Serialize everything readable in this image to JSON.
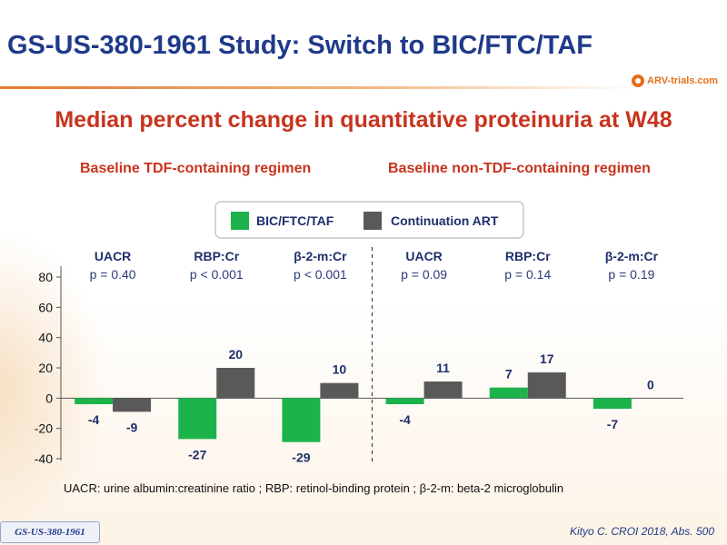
{
  "slide": {
    "title": "GS-US-380-1961 Study: Switch to BIC/FTC/TAF",
    "logo_text": "ARV-trials.com",
    "subtitle": "Median percent change in quantitative proteinuria at W48",
    "group_labels": [
      "Baseline TDF-containing regimen",
      "Baseline non-TDF-containing regimen"
    ],
    "footnote": "UACR: urine albumin:creatinine ratio ; RBP: retinol-binding protein ;  β-2-m: beta-2 microglobulin",
    "badge": "GS-US-380-1961",
    "citation": "Kityo C. CROI 2018, Abs. 500",
    "colors": {
      "title": "#1f3a8a",
      "accent": "#c7341e",
      "rule": "#e27830"
    }
  },
  "chart_data": {
    "type": "bar",
    "title": "Median percent change in quantitative proteinuria at W48",
    "categories": [
      "UACR",
      "RBP:Cr",
      "β-2-m:Cr",
      "UACR",
      "RBP:Cr",
      "β-2-m:Cr"
    ],
    "p_values": [
      "p = 0.40",
      "p < 0.001",
      "p < 0.001",
      "p = 0.09",
      "p = 0.14",
      "p = 0.19"
    ],
    "groups": [
      {
        "label": "Baseline TDF-containing regimen",
        "categories": [
          0,
          1,
          2
        ]
      },
      {
        "label": "Baseline non-TDF-containing regimen",
        "categories": [
          3,
          4,
          5
        ]
      }
    ],
    "series": [
      {
        "name": "BIC/FTC/TAF",
        "color": "#1cb34a",
        "values": [
          -4,
          -27,
          -29,
          -4,
          7,
          -7
        ]
      },
      {
        "name": "Continuation  ART",
        "color": "#595959",
        "values": [
          -9,
          20,
          10,
          11,
          17,
          0
        ]
      }
    ],
    "ylim": [
      -40,
      80
    ],
    "yticks": [
      -40,
      -20,
      0,
      20,
      40,
      60,
      80
    ],
    "xlabel": "",
    "ylabel": "",
    "grid": false,
    "legend_position": "top-center"
  }
}
